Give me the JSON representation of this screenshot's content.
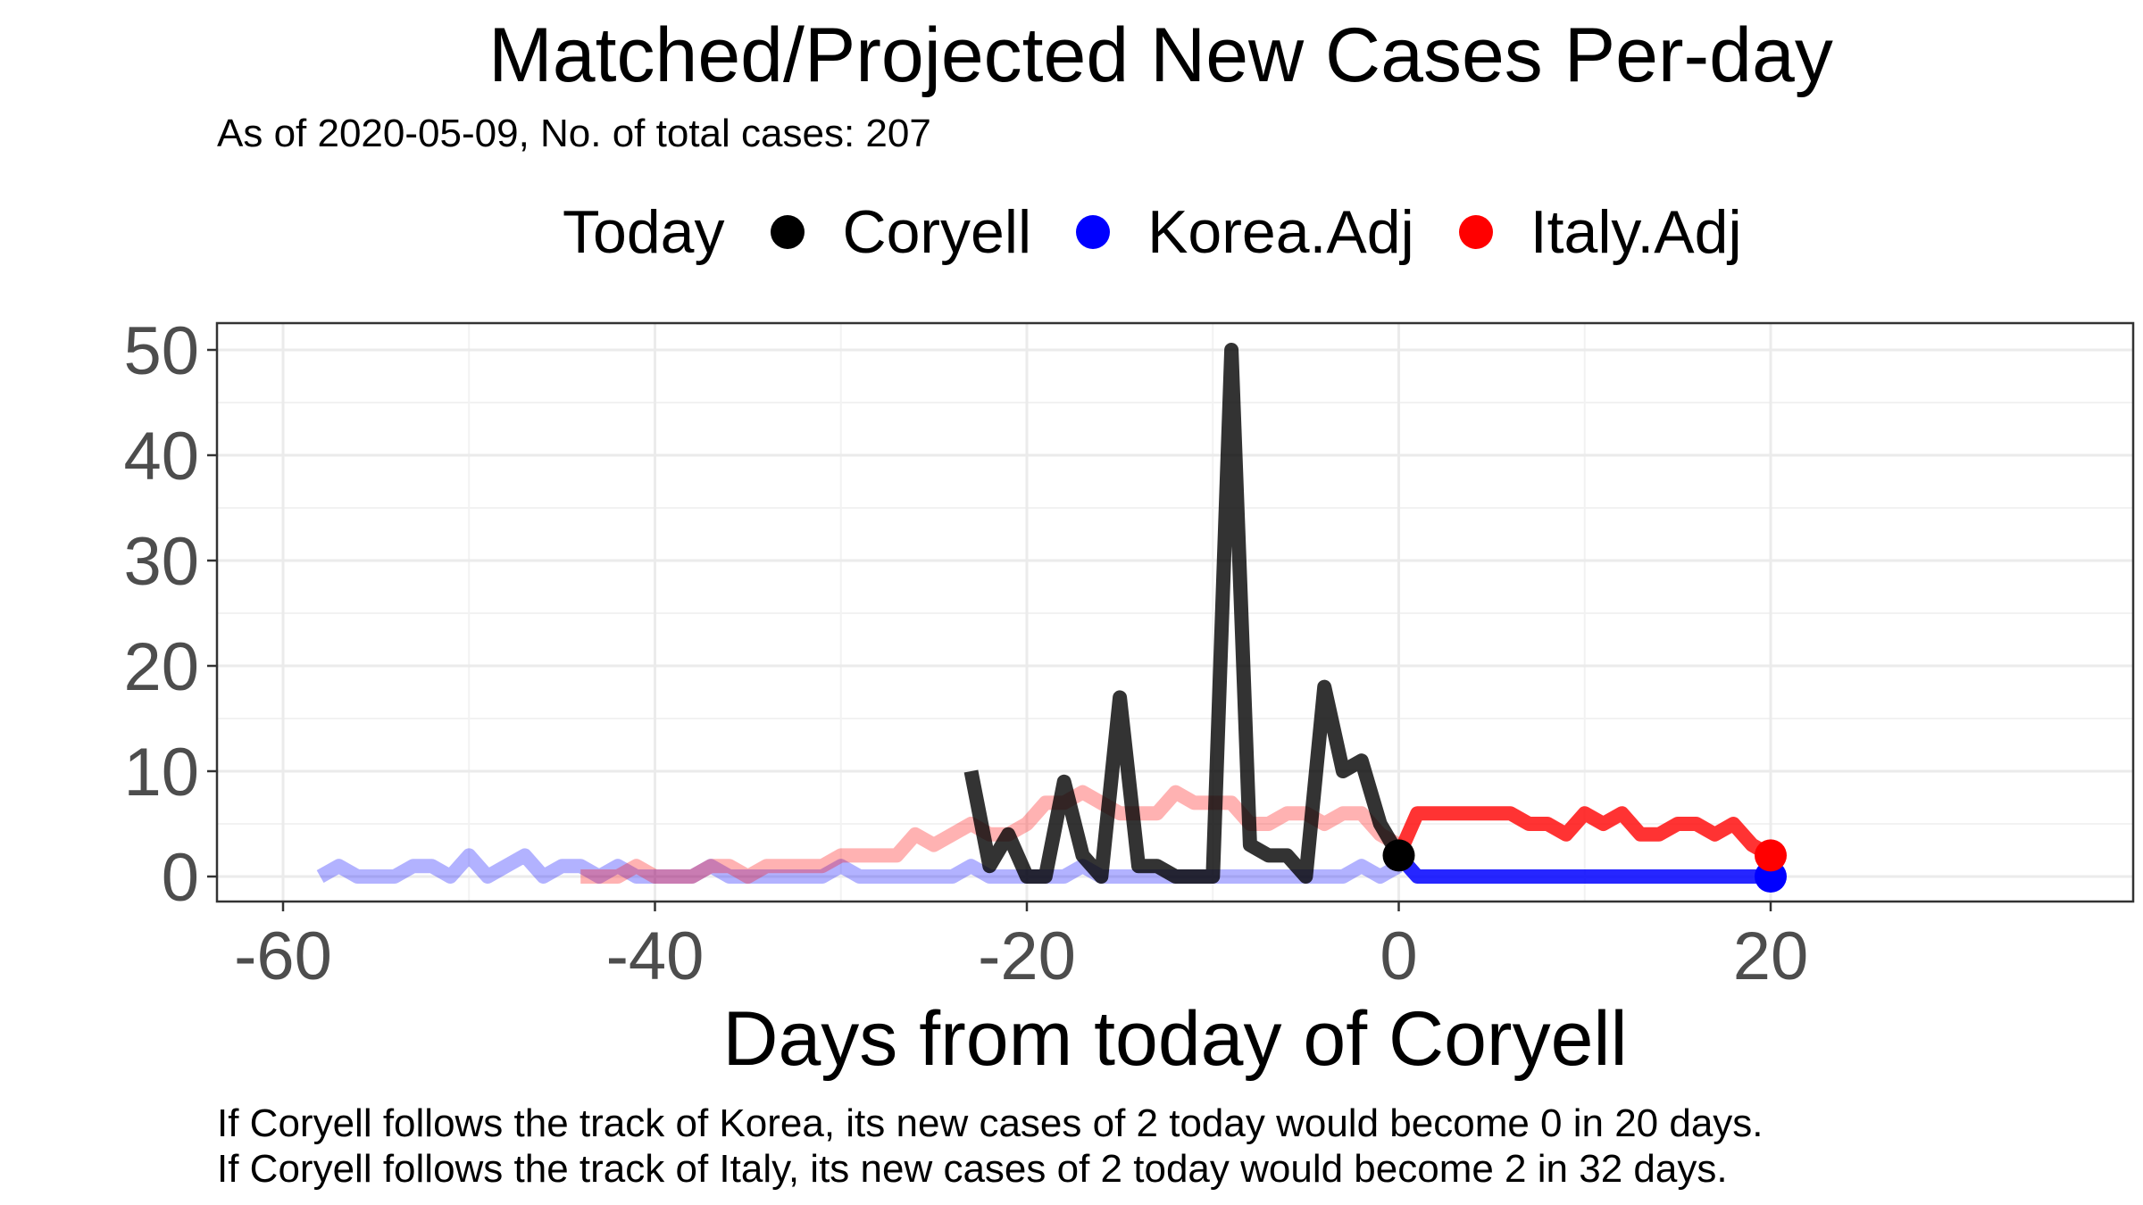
{
  "chart_data": {
    "type": "line",
    "title": "Matched/Projected New Cases Per-day",
    "subtitle": "As of 2020-05-09, No. of total cases: 207",
    "xlabel": "Days from today of Coryell",
    "ylabel": "",
    "xlim": [
      -60,
      20
    ],
    "ylim": [
      0,
      50
    ],
    "x_ticks": [
      -60,
      -40,
      -20,
      0,
      20
    ],
    "y_ticks": [
      0,
      10,
      20,
      30,
      40,
      50
    ],
    "grid": true,
    "legend": {
      "title": "Today",
      "placement": "top",
      "items": [
        {
          "label": "Coryell",
          "color": "#000000"
        },
        {
          "label": "Korea.Adj",
          "color": "#0000ff"
        },
        {
          "label": "Italy.Adj",
          "color": "#ff0000"
        }
      ]
    },
    "series": [
      {
        "name": "Korea.Adj",
        "color": "#0000ff",
        "matched": {
          "x": [
            -58,
            -57,
            -56,
            -55,
            -54,
            -53,
            -52,
            -51,
            -50,
            -49,
            -48,
            -47,
            -46,
            -45,
            -44,
            -43,
            -42,
            -41,
            -40,
            -39,
            -38,
            -37,
            -36,
            -35,
            -34,
            -33,
            -32,
            -31,
            -30,
            -29,
            -28,
            -27,
            -26,
            -25,
            -24,
            -23,
            -22,
            -21,
            -20,
            -19,
            -18,
            -17,
            -16,
            -15,
            -14,
            -13,
            -12,
            -11,
            -10,
            -9,
            -8,
            -7,
            -6,
            -5,
            -4,
            -3,
            -2,
            -1,
            0
          ],
          "y": [
            0,
            1,
            0,
            0,
            0,
            1,
            1,
            0,
            2,
            0,
            1,
            2,
            0,
            1,
            1,
            0,
            1,
            0,
            0,
            0,
            0,
            1,
            0,
            0,
            0,
            0,
            0,
            0,
            1,
            0,
            0,
            0,
            0,
            0,
            0,
            1,
            0,
            0,
            0,
            0,
            0,
            1,
            0,
            0,
            0,
            0,
            0,
            0,
            0,
            0,
            0,
            0,
            0,
            0,
            0,
            0,
            1,
            0,
            1
          ]
        },
        "projected": {
          "x": [
            0,
            1,
            2,
            3,
            4,
            5,
            6,
            7,
            8,
            9,
            10,
            11,
            12,
            13,
            14,
            15,
            16,
            17,
            18,
            19,
            20
          ],
          "y": [
            2,
            0,
            0,
            0,
            0,
            0,
            0,
            0,
            0,
            0,
            0,
            0,
            0,
            0,
            0,
            0,
            0,
            0,
            0,
            0,
            0
          ]
        }
      },
      {
        "name": "Italy.Adj",
        "color": "#ff0000",
        "matched": {
          "x": [
            -44,
            -43,
            -42,
            -41,
            -40,
            -39,
            -38,
            -37,
            -36,
            -35,
            -34,
            -33,
            -32,
            -31,
            -30,
            -29,
            -28,
            -27,
            -26,
            -25,
            -24,
            -23,
            -22,
            -21,
            -20,
            -19,
            -18,
            -17,
            -16,
            -15,
            -14,
            -13,
            -12,
            -11,
            -10,
            -9,
            -8,
            -7,
            -6,
            -5,
            -4,
            -3,
            -2,
            -1,
            0
          ],
          "y": [
            0,
            0,
            0,
            1,
            0,
            0,
            0,
            1,
            1,
            0,
            1,
            1,
            1,
            1,
            2,
            2,
            2,
            2,
            4,
            3,
            4,
            5,
            4,
            4,
            5,
            7,
            7,
            8,
            7,
            6,
            6,
            6,
            8,
            7,
            7,
            7,
            5,
            5,
            6,
            6,
            5,
            6,
            6,
            4,
            3
          ]
        },
        "projected": {
          "x": [
            0,
            1,
            2,
            3,
            4,
            5,
            6,
            7,
            8,
            9,
            10,
            11,
            12,
            13,
            14,
            15,
            16,
            17,
            18,
            19,
            20
          ],
          "y": [
            2,
            6,
            6,
            6,
            6,
            6,
            6,
            5,
            5,
            4,
            6,
            5,
            6,
            4,
            4,
            5,
            5,
            4,
            5,
            3,
            2
          ]
        }
      },
      {
        "name": "Coryell",
        "color": "#000000",
        "x": [
          -23,
          -22,
          -21,
          -20,
          -19,
          -18,
          -17,
          -16,
          -15,
          -14,
          -13,
          -12,
          -11,
          -10,
          -9,
          -8,
          -7,
          -6,
          -5,
          -4,
          -3,
          -2,
          -1,
          0
        ],
        "y": [
          10,
          1,
          4,
          0,
          0,
          9,
          2,
          0,
          17,
          1,
          1,
          0,
          0,
          0,
          50,
          3,
          2,
          2,
          0,
          18,
          10,
          11,
          5,
          2
        ],
        "today": {
          "x": 0,
          "y": 2
        }
      }
    ]
  },
  "captions": [
    "If Coryell follows the track of Korea, its new cases of 2 today would become 0 in 20 days.",
    "If Coryell follows the track of Italy, its new cases of 2 today would become 2 in 32 days."
  ]
}
